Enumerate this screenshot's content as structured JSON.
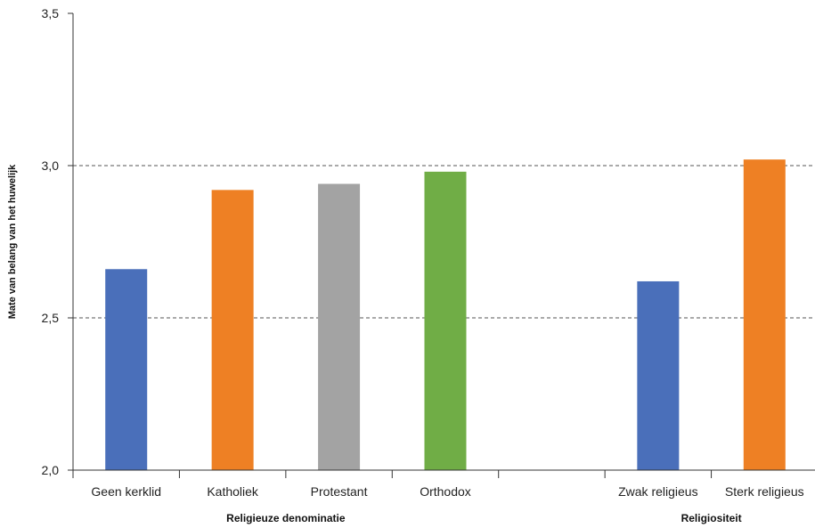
{
  "chart_data": {
    "type": "bar",
    "ylabel": "Mate van belang van het huwelijk",
    "ylim": [
      2.0,
      3.5
    ],
    "yticks": [
      "2,0",
      "2,5",
      "3,0",
      "3,5"
    ],
    "ytick_values": [
      2.0,
      2.5,
      3.0,
      3.5
    ],
    "gridlines": [
      2.5,
      3.0
    ],
    "categories": [
      "Geen kerklid",
      "Katholiek",
      "Protestant",
      "Orthodox",
      "",
      "Zwak religieus",
      "Sterk religieus"
    ],
    "values": [
      2.66,
      2.92,
      2.94,
      2.98,
      null,
      2.62,
      3.02
    ],
    "colors": [
      "#4a6fba",
      "#ee8024",
      "#a3a3a3",
      "#70ad46",
      null,
      "#4a6fba",
      "#ee8024"
    ],
    "groups": [
      {
        "label": "Religieuze denominatie",
        "categories": [
          0,
          1,
          2,
          3
        ]
      },
      {
        "label": "Religiositeit",
        "categories": [
          5,
          6
        ]
      }
    ]
  }
}
